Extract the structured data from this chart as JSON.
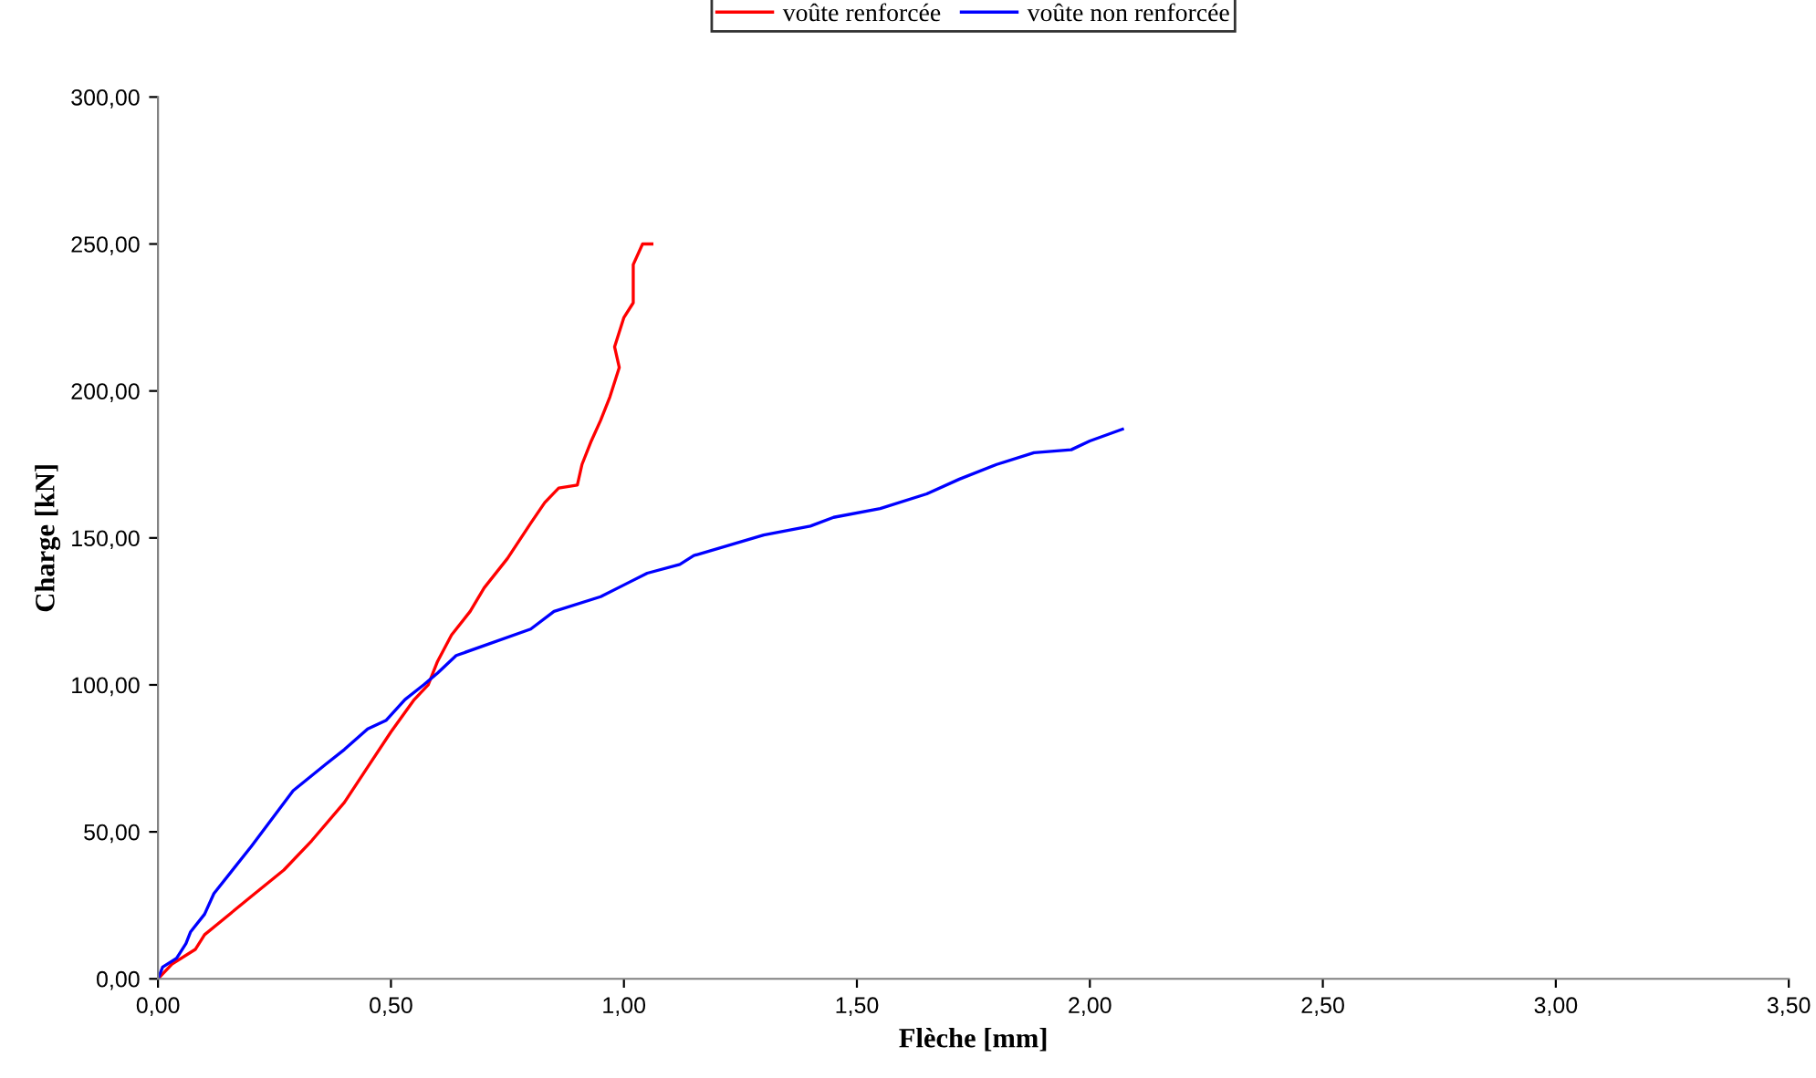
{
  "chart_data": {
    "type": "line",
    "xlabel": "Flèche [mm]",
    "ylabel": "Charge [kN]",
    "xlim": [
      0,
      3.5
    ],
    "ylim": [
      0,
      300
    ],
    "xticks": [
      {
        "value": 0,
        "label": "0,00"
      },
      {
        "value": 0.5,
        "label": "0,50"
      },
      {
        "value": 1,
        "label": "1,00"
      },
      {
        "value": 1.5,
        "label": "1,50"
      },
      {
        "value": 2,
        "label": "2,00"
      },
      {
        "value": 2.5,
        "label": "2,50"
      },
      {
        "value": 3,
        "label": "3,00"
      },
      {
        "value": 3.5,
        "label": "3,50"
      }
    ],
    "yticks": [
      {
        "value": 0,
        "label": "0,00"
      },
      {
        "value": 50,
        "label": "50,00"
      },
      {
        "value": 100,
        "label": "100,00"
      },
      {
        "value": 150,
        "label": "150,00"
      },
      {
        "value": 200,
        "label": "200,00"
      },
      {
        "value": 250,
        "label": "250,00"
      },
      {
        "value": 300,
        "label": "300,00"
      }
    ],
    "grid": false,
    "legend": "top",
    "marker": "none",
    "line_style": "solid",
    "series": [
      {
        "name": "voûte renforcée",
        "color": "#ff0000",
        "x": [
          0,
          0.03,
          0.08,
          0.1,
          0.2,
          0.27,
          0.33,
          0.4,
          0.45,
          0.5,
          0.55,
          0.58,
          0.6,
          0.63,
          0.67,
          0.7,
          0.75,
          0.8,
          0.83,
          0.86,
          0.9,
          0.91,
          0.93,
          0.95,
          0.97,
          0.99,
          0.98,
          1.0,
          1.02,
          1.02,
          1.04,
          1.06
        ],
        "values": [
          0,
          5,
          10,
          15,
          28,
          37,
          47,
          60,
          72,
          84,
          95,
          100,
          108,
          117,
          125,
          133,
          143,
          155,
          162,
          167,
          168,
          175,
          183,
          190,
          198,
          208,
          215,
          225,
          230,
          243,
          250,
          250
        ]
      },
      {
        "name": "voûte non renforcée",
        "color": "#0000ff",
        "x": [
          0,
          0.01,
          0.04,
          0.06,
          0.07,
          0.1,
          0.12,
          0.2,
          0.29,
          0.36,
          0.4,
          0.45,
          0.49,
          0.53,
          0.57,
          0.6,
          0.64,
          0.8,
          0.85,
          0.95,
          1.0,
          1.05,
          1.12,
          1.15,
          1.3,
          1.4,
          1.45,
          1.55,
          1.65,
          1.72,
          1.8,
          1.88,
          1.96,
          2.0,
          2.07
        ],
        "values": [
          0,
          4,
          7,
          12,
          16,
          22,
          29,
          45,
          64,
          73,
          78,
          85,
          88,
          95,
          100,
          104,
          110,
          119,
          125,
          130,
          134,
          138,
          141,
          144,
          151,
          154,
          157,
          160,
          165,
          170,
          175,
          179,
          180,
          183,
          187
        ]
      }
    ]
  }
}
